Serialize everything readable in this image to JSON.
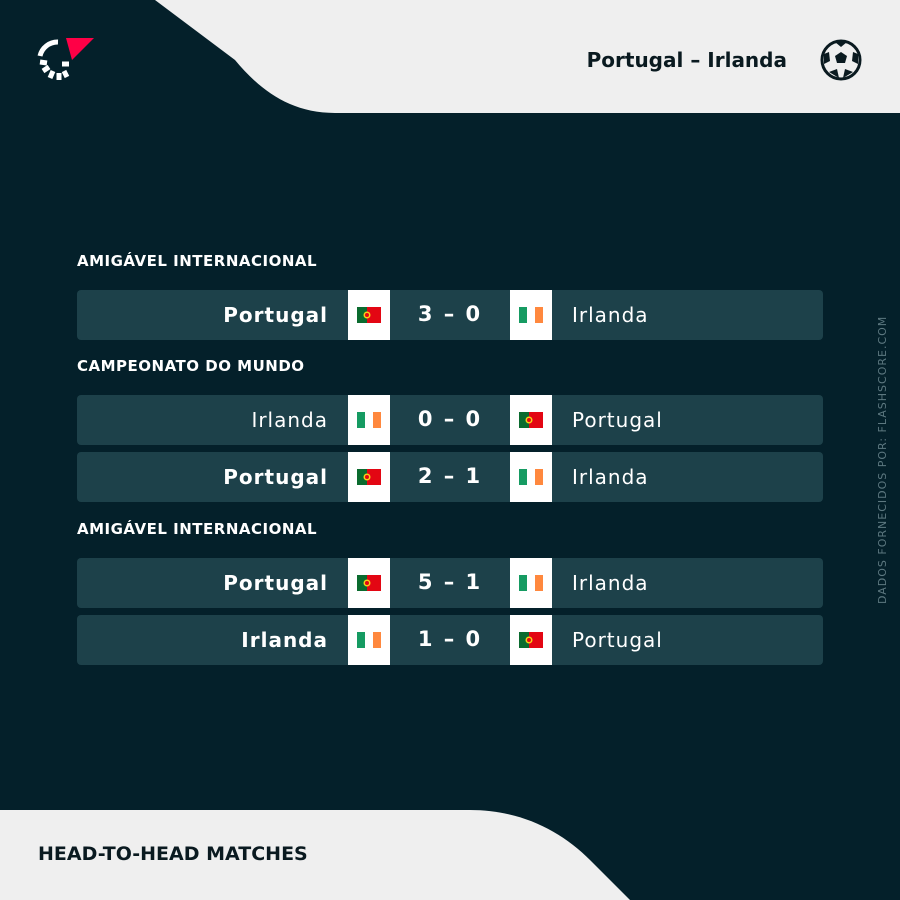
{
  "header": {
    "title": "Portugal – Irlanda",
    "sport_icon": "soccer-ball-icon",
    "logo_icon": "flashscore-logo-icon"
  },
  "sections": [
    {
      "label": "AMIGÁVEL INTERNACIONAL",
      "matches": [
        {
          "home": "Portugal",
          "home_flag": "portugal",
          "score": "3 – 0",
          "away": "Irlanda",
          "away_flag": "ireland",
          "winner": "home"
        }
      ]
    },
    {
      "label": "CAMPEONATO DO MUNDO",
      "matches": [
        {
          "home": "Irlanda",
          "home_flag": "ireland",
          "score": "0 – 0",
          "away": "Portugal",
          "away_flag": "portugal",
          "winner": "none"
        },
        {
          "home": "Portugal",
          "home_flag": "portugal",
          "score": "2 – 1",
          "away": "Irlanda",
          "away_flag": "ireland",
          "winner": "home"
        }
      ]
    },
    {
      "label": "AMIGÁVEL INTERNACIONAL",
      "matches": [
        {
          "home": "Portugal",
          "home_flag": "portugal",
          "score": "5 – 1",
          "away": "Irlanda",
          "away_flag": "ireland",
          "winner": "home"
        },
        {
          "home": "Irlanda",
          "home_flag": "ireland",
          "score": "1 – 0",
          "away": "Portugal",
          "away_flag": "portugal",
          "winner": "home"
        }
      ]
    }
  ],
  "side_credit": "DADOS FORNECIDOS POR: FLASHSCORE.COM",
  "footer": "HEAD-TO-HEAD MATCHES",
  "colors": {
    "background": "#04202a",
    "row": "#1d414a",
    "light": "#efefef",
    "accent": "#ff0046"
  }
}
